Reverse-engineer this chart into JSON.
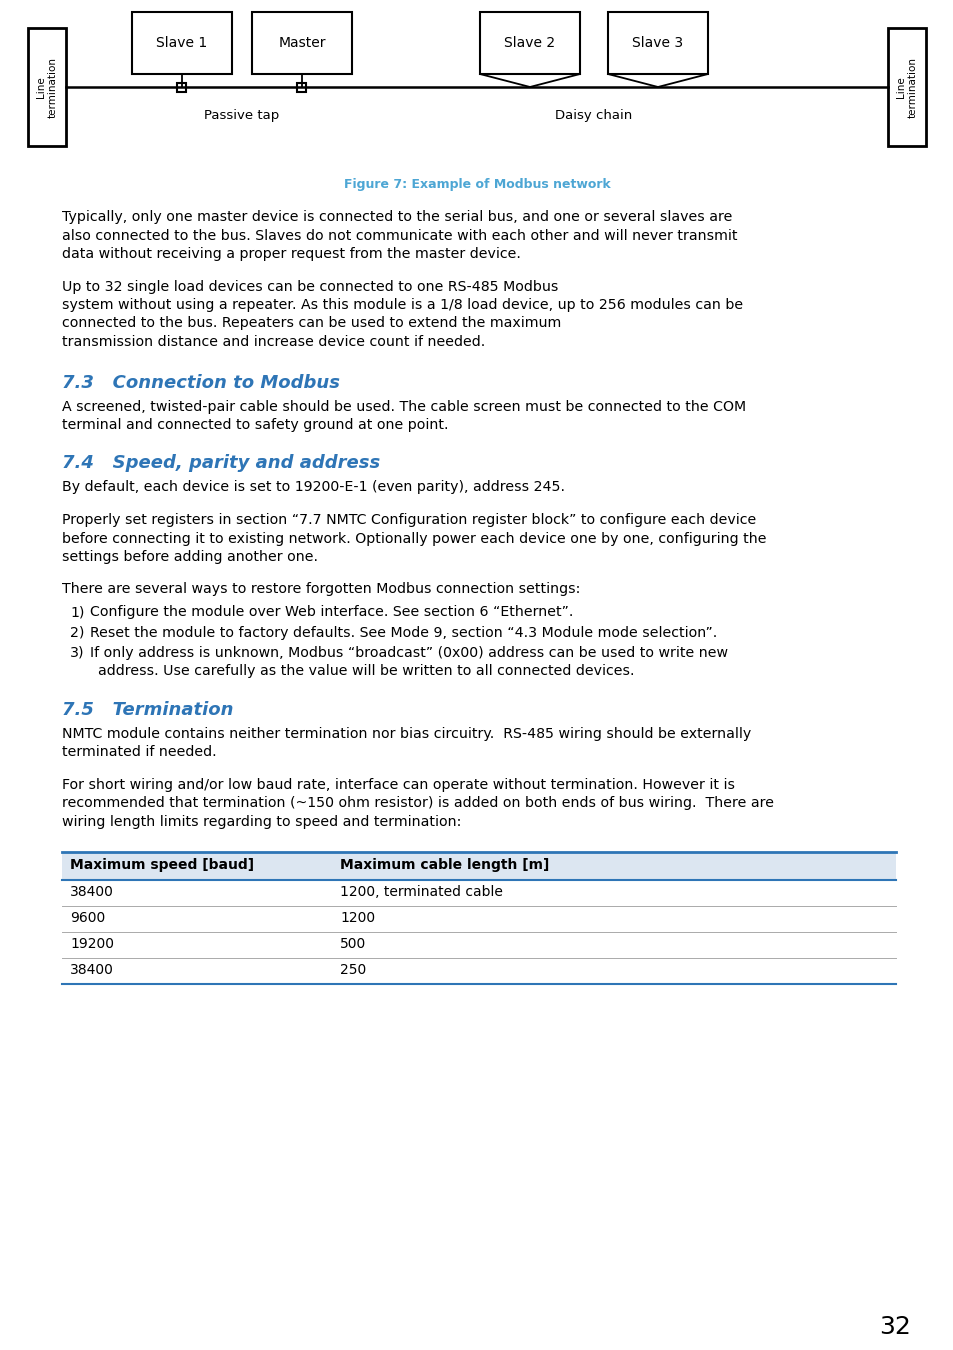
{
  "fig_caption": "Figure 7: Example of Modbus network",
  "fig_caption_color": "#4da6d4",
  "heading_color": "#2e75b6",
  "body_color": "#000000",
  "bg_color": "#ffffff",
  "page_number": "32",
  "section_73_title": "7.3   Connection to Modbus",
  "section_73_body1": "A screened, twisted-pair cable should be used. The cable screen must be connected to the COM",
  "section_73_body2": "terminal and connected to safety ground at one point.",
  "section_74_title": "7.4   Speed, parity and address",
  "section_74_body1": "By default, each device is set to 19200-E-1 (even parity), address 245.",
  "section_74_body2a": "Properly set registers in section “7.7 NMTC Configuration register block” to configure each device",
  "section_74_body2b": "before connecting it to existing network. Optionally power each device one by one, configuring the",
  "section_74_body2c": "settings before adding another one.",
  "section_74_body3": "There are several ways to restore forgotten Modbus connection settings:",
  "section_74_list1": "Configure the module over Web interface. See section 6 “Ethernet”.",
  "section_74_list2": "Reset the module to factory defaults. See Mode 9, section “4.3 Module mode selection”.",
  "section_74_list3a": "If only address is unknown, Modbus “broadcast” (0x00) address can be used to write new",
  "section_74_list3b": "address. Use carefully as the value will be written to all connected devices.",
  "section_75_title": "7.5   Termination",
  "section_75_body1a": "NMTC module contains neither termination nor bias circuitry.  RS-485 wiring should be externally",
  "section_75_body1b": "terminated if needed.",
  "section_75_body2a": "For short wiring and/or low baud rate, interface can operate without termination. However it is",
  "section_75_body2b": "recommended that termination (~150 ohm resistor) is added on both ends of bus wiring.  There are",
  "section_75_body2c": "wiring length limits regarding to speed and termination:",
  "table_headers": [
    "Maximum speed [baud]",
    "Maximum cable length [m]"
  ],
  "table_rows": [
    [
      "38400",
      "1200, terminated cable"
    ],
    [
      "9600",
      "1200"
    ],
    [
      "19200",
      "500"
    ],
    [
      "38400",
      "250"
    ]
  ],
  "para1a": "Typically, only one master device is connected to the serial bus, and one or several slaves are",
  "para1b": "also connected to the bus. Slaves do not communicate with each other and will never transmit",
  "para1c": "data without receiving a proper request from the master device.",
  "para2a": "Up to 32 single load devices can be connected to one RS-485 Modbus",
  "para2b": "system without using a repeater. As this module is a 1/8 load device, up to 256 modules can be",
  "para2c": "connected to the bus. Repeaters can be used to extend the maximum",
  "para2d": "transmission distance and increase device count if needed."
}
